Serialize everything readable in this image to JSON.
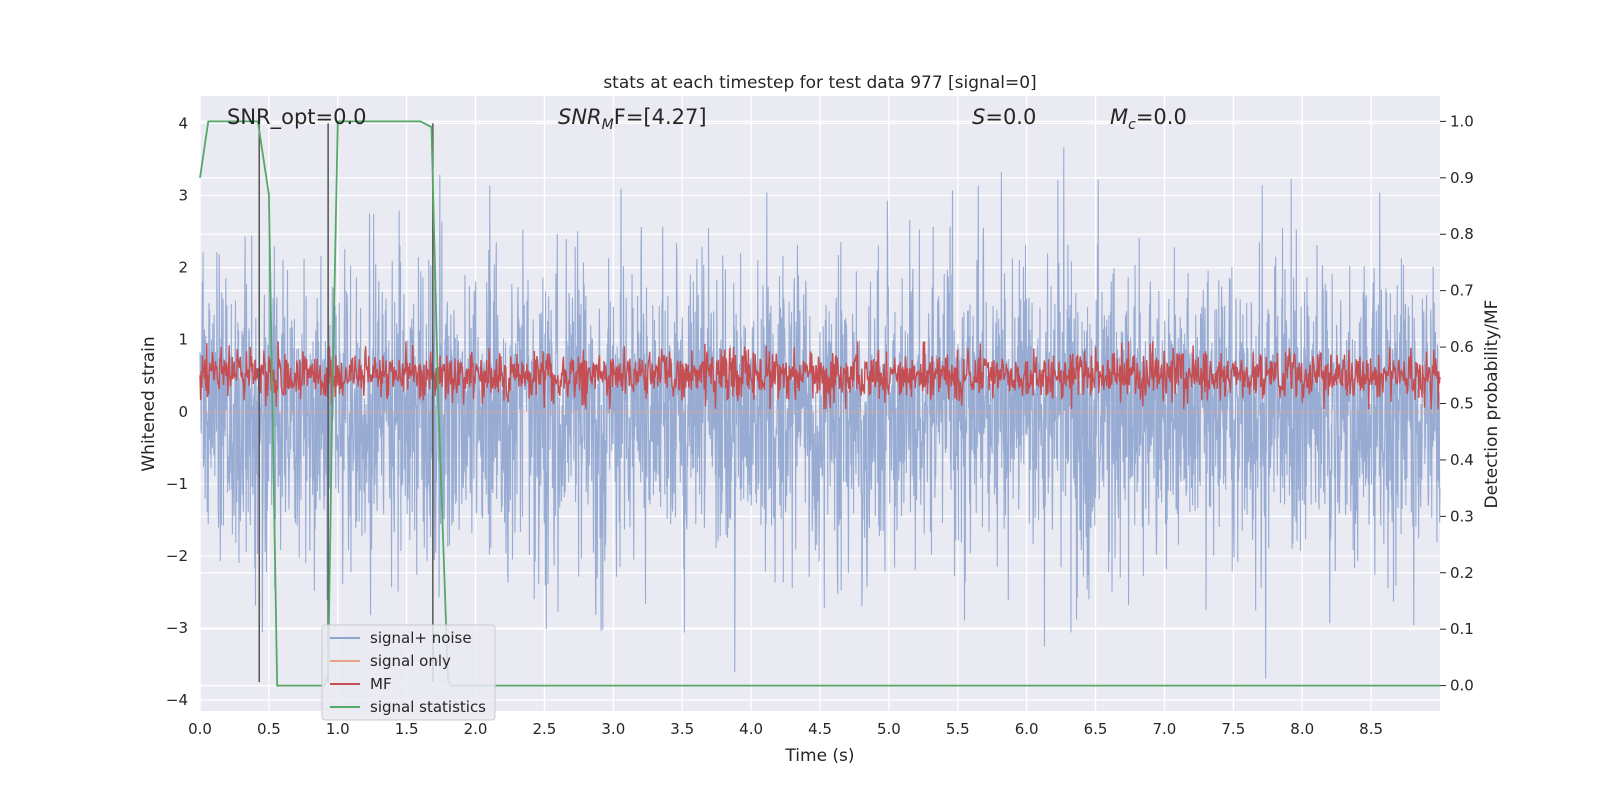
{
  "chart_data": {
    "type": "line",
    "title": "stats at each timestep for test data 977 [signal=0]",
    "xlabel": "Time (s)",
    "ylabel_left": "Whitened strain",
    "ylabel_right": "Detection probability/MF",
    "xlim": [
      0.0,
      9.0
    ],
    "ylim_left": [
      -4.15,
      4.38
    ],
    "ylim_right": [
      -0.045,
      1.045
    ],
    "x_ticks": [
      "0.0",
      "0.5",
      "1.0",
      "1.5",
      "2.0",
      "2.5",
      "3.0",
      "3.5",
      "4.0",
      "4.5",
      "5.0",
      "5.5",
      "6.0",
      "6.5",
      "7.0",
      "7.5",
      "8.0",
      "8.5"
    ],
    "y_ticks_left": [
      "4",
      "3",
      "2",
      "1",
      "0",
      "−1",
      "−2",
      "−3",
      "−4"
    ],
    "y_ticks_right": [
      "1.0",
      "0.9",
      "0.8",
      "0.7",
      "0.6",
      "0.5",
      "0.4",
      "0.3",
      "0.2",
      "0.1",
      "0.0"
    ],
    "grid": true,
    "legend_position": "lower-left",
    "annotations": {
      "snr_opt": "SNR_opt=0.0",
      "snr_mf_main": "SNR",
      "snr_mf_sub": "M",
      "snr_mf_rest": "F=[4.27]",
      "s_main": "S",
      "s_rest": "=0.0",
      "mc_main": "M",
      "mc_sub": "c",
      "mc_rest": "=0.0"
    },
    "series": [
      {
        "name": "signal+ noise",
        "color": "#8fa5cf",
        "axis": "left",
        "description": "whitened strain noise, approx. zero mean, range -3.7 to 4.0",
        "x_range": [
          0.0,
          9.0
        ],
        "y_range": [
          -3.7,
          4.0
        ]
      },
      {
        "name": "signal only",
        "color": "#e8a486",
        "axis": "left",
        "x": [
          0.0,
          9.0
        ],
        "y": [
          0.0,
          0.0
        ]
      },
      {
        "name": "MF",
        "color": "#c44e52",
        "axis": "right",
        "description": "matched filter output, range about 0.5 to 0.6",
        "x_range": [
          0.0,
          9.0
        ],
        "y_range": [
          0.5,
          0.6
        ]
      },
      {
        "name": "signal statistics",
        "color": "#55a868",
        "axis": "right",
        "x": [
          0.0,
          0.06,
          0.42,
          0.5,
          0.56,
          0.6,
          0.9,
          0.93,
          0.96,
          1.0,
          1.6,
          1.68,
          1.73,
          1.8,
          1.82,
          2.2,
          9.0
        ],
        "y": [
          0.9,
          1.0,
          1.0,
          0.87,
          0.0,
          0.0,
          0.0,
          0.02,
          0.5,
          1.0,
          1.0,
          0.99,
          0.5,
          0.01,
          0.0,
          0.0,
          0.0
        ]
      }
    ],
    "vertical_lines_x": [
      0.43,
      0.93,
      1.69
    ],
    "vertical_lines_color": "#555555"
  }
}
